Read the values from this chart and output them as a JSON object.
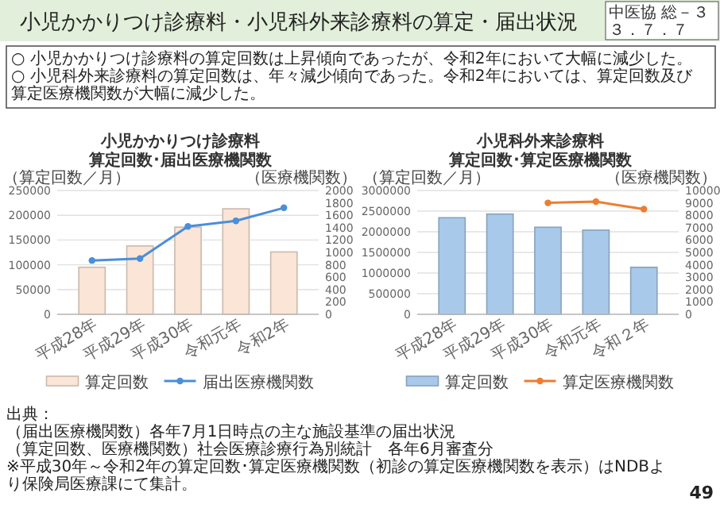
{
  "chart_data": [
    {
      "type": "other",
      "title": "小児かかりつけ診療料・小児科外来診療料の算定・届出状況",
      "annotations": [
        "○ 小児かかりつけ診療料の算定回数は上昇傾向であったが、令和2年において大幅に減少した。",
        "○ 小児科外来診療料の算定回数は、年々減少傾向であった。令和2年においては、算定回数及び算定医療機関数が大幅に減少した。",
        "中医協 総－３",
        "３．７．７"
      ]
    },
    {
      "type": "bar",
      "title": "小児かかりつけ診療料",
      "subtitle": "算定回数･届出医療機関数",
      "ylabel": "（算定回数／月）",
      "y2label": "（医療機関数）",
      "categories": [
        "平成28年",
        "平成29年",
        "平成30年",
        "令和元年",
        "令和2年"
      ],
      "ylim": [
        0,
        250000
      ],
      "yticks": [
        0,
        50000,
        100000,
        150000,
        200000,
        250000
      ],
      "y2lim": [
        0,
        2000
      ],
      "y2ticks": [
        0,
        200,
        400,
        600,
        800,
        1000,
        1200,
        1400,
        1600,
        1800,
        2000
      ],
      "grid": "y",
      "legend": "bottom",
      "marker": "circle",
      "series": [
        {
          "name": "算定回数",
          "type": "bar",
          "color": "#fbe5d6",
          "values": [
            95000,
            138000,
            176000,
            213000,
            126000
          ]
        },
        {
          "name": "届出医療機関数",
          "type": "line",
          "axis": "y2",
          "color": "#4a8fd8",
          "values": [
            870,
            900,
            1420,
            1510,
            1720
          ]
        }
      ]
    },
    {
      "type": "bar",
      "title": "小児科外来診療料",
      "subtitle": "算定回数･算定医療機関数",
      "ylabel": "（算定回数／月）",
      "y2label": "（医療機関数）",
      "categories": [
        "平成28年",
        "平成29年",
        "平成30年",
        "令和元年",
        "令和２年"
      ],
      "ylim": [
        0,
        3000000
      ],
      "yticks": [
        0,
        500000,
        1000000,
        1500000,
        2000000,
        2500000,
        3000000
      ],
      "y2lim": [
        0,
        10000
      ],
      "y2ticks": [
        0,
        1000,
        2000,
        3000,
        4000,
        5000,
        6000,
        7000,
        8000,
        9000,
        10000
      ],
      "grid": "y",
      "legend": "bottom",
      "marker": "circle",
      "series": [
        {
          "name": "算定回数",
          "type": "bar",
          "color": "#a9c9ea",
          "values": [
            2340000,
            2430000,
            2110000,
            2040000,
            1140000
          ]
        },
        {
          "name": "算定医療機関数",
          "type": "line",
          "axis": "y2",
          "color": "#ed7d31",
          "values": [
            null,
            null,
            9000,
            9100,
            8500
          ]
        }
      ]
    },
    {
      "type": "other",
      "annotations": [
        "出典：",
        "（届出医療機関数）各年7月1日時点の主な施設基準の届出状況",
        "（算定回数、医療機関数）社会医療診療行為別統計　各年6月審査分",
        "※平成30年～令和2年の算定回数･算定医療機関数（初診の算定医療機関数を表示）はNDBより保険局医療課にて集計。",
        "49"
      ]
    }
  ]
}
